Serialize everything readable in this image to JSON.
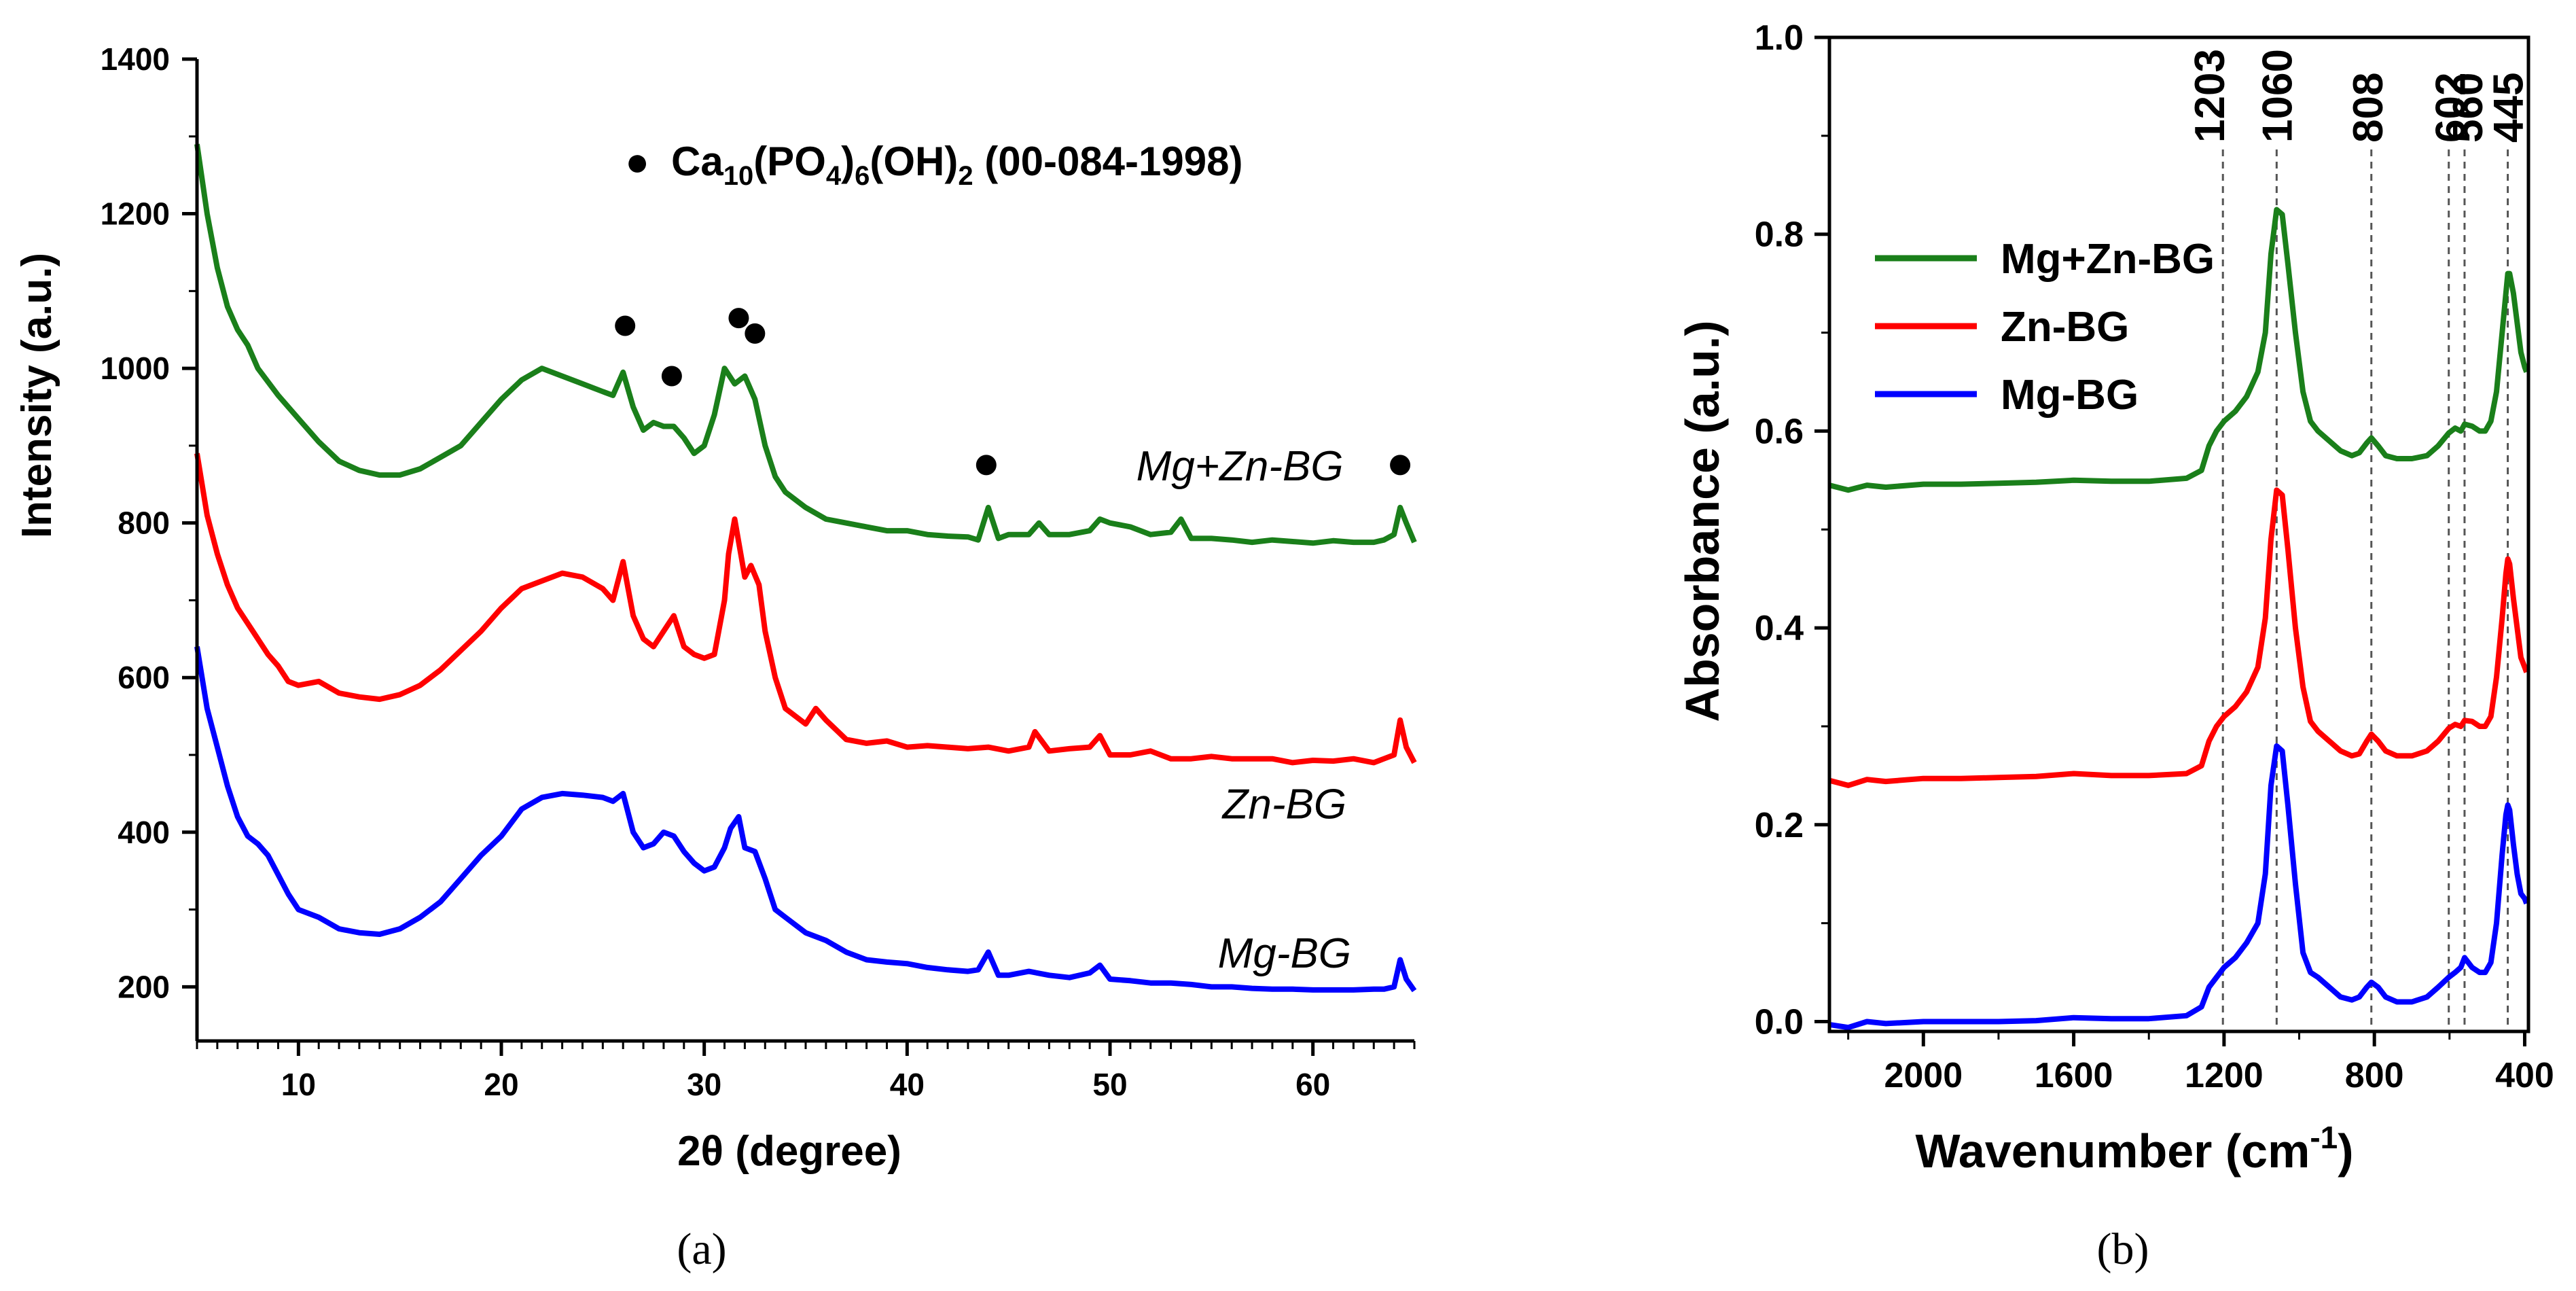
{
  "chart_data": [
    {
      "type": "line",
      "panel_label": "(a)",
      "xlabel": "2θ (degree)",
      "ylabel": "Intensity (a.u.)",
      "xlim": [
        5,
        65
      ],
      "ylim": [
        130,
        1400
      ],
      "x_ticks": [
        10,
        20,
        30,
        40,
        50,
        60
      ],
      "y_ticks": [
        200,
        400,
        600,
        800,
        1000,
        1200,
        1400
      ],
      "grid": false,
      "legend_title": "Ca10(PO4)6(OH)2 (00-084-1998)",
      "legend_parts": {
        "marker": "●",
        "ca": "Ca",
        "s10": "10",
        "po": "(PO",
        "s4": "4",
        "c": ")",
        "s6": "6",
        "oh": "(OH)",
        "s2": "2",
        "code": " (00-084-1998)"
      },
      "peak_markers": [
        {
          "x": 26.1,
          "y": 1055
        },
        {
          "x": 28.4,
          "y": 990
        },
        {
          "x": 31.7,
          "y": 1065
        },
        {
          "x": 32.5,
          "y": 1045
        },
        {
          "x": 43.9,
          "y": 875
        },
        {
          "x": 64.3,
          "y": 875
        }
      ],
      "series": [
        {
          "name": "Mg+Zn-BG",
          "color": "#1a7f1a",
          "label_x": 56.4,
          "label_y": 855,
          "x": [
            5,
            5.5,
            6,
            6.5,
            7,
            7.5,
            8,
            9,
            10,
            11,
            12,
            13,
            14,
            15,
            16,
            17,
            18,
            19,
            20,
            21,
            22,
            23,
            24,
            25,
            25.5,
            26,
            26.5,
            27,
            27.5,
            28,
            28.5,
            29,
            29.5,
            30,
            30.5,
            31,
            31.5,
            32,
            32.5,
            33,
            33.5,
            34,
            35,
            36,
            37,
            38,
            39,
            40,
            41,
            42,
            43,
            43.5,
            44,
            44.5,
            45,
            46,
            46.5,
            47,
            48,
            49,
            49.5,
            50,
            51,
            52,
            53,
            53.5,
            54,
            55,
            56,
            57,
            58,
            59,
            60,
            61,
            62,
            63,
            63.5,
            64,
            64.3,
            64.6,
            65
          ],
          "y": [
            1290,
            1200,
            1130,
            1080,
            1050,
            1030,
            1000,
            965,
            935,
            905,
            880,
            868,
            862,
            862,
            870,
            885,
            900,
            930,
            960,
            985,
            1000,
            990,
            980,
            970,
            965,
            995,
            950,
            920,
            930,
            925,
            925,
            910,
            890,
            900,
            940,
            1000,
            980,
            990,
            960,
            900,
            860,
            840,
            820,
            805,
            800,
            795,
            790,
            790,
            785,
            783,
            782,
            778,
            820,
            780,
            785,
            785,
            800,
            785,
            785,
            790,
            805,
            800,
            795,
            785,
            788,
            805,
            780,
            780,
            778,
            775,
            778,
            776,
            774,
            777,
            775,
            775,
            778,
            785,
            820,
            800,
            775
          ]
        },
        {
          "name": "Zn-BG",
          "color": "#ff0000",
          "label_x": 58.6,
          "label_y": 418,
          "x": [
            5,
            5.5,
            6,
            6.5,
            7,
            7.5,
            8,
            8.5,
            9,
            9.5,
            10,
            11,
            12,
            13,
            14,
            15,
            16,
            17,
            18,
            19,
            20,
            21,
            22,
            23,
            24,
            25,
            25.5,
            26,
            26.5,
            27,
            27.5,
            28,
            28.5,
            29,
            29.5,
            30,
            30.5,
            31,
            31.2,
            31.5,
            32,
            32.3,
            32.7,
            33,
            33.5,
            34,
            35,
            35.5,
            36,
            37,
            38,
            39,
            40,
            41,
            42,
            43,
            44,
            45,
            46,
            46.3,
            47,
            48,
            49,
            49.5,
            50,
            51,
            52,
            53,
            54,
            55,
            56,
            57,
            58,
            59,
            60,
            61,
            62,
            63,
            63.5,
            64,
            64.3,
            64.6,
            65
          ],
          "y": [
            890,
            810,
            760,
            720,
            690,
            670,
            650,
            630,
            615,
            595,
            590,
            595,
            580,
            575,
            572,
            578,
            590,
            610,
            635,
            660,
            690,
            715,
            725,
            735,
            730,
            715,
            700,
            750,
            680,
            650,
            640,
            660,
            680,
            640,
            630,
            625,
            630,
            700,
            760,
            805,
            730,
            745,
            720,
            660,
            600,
            560,
            540,
            560,
            545,
            520,
            515,
            518,
            510,
            512,
            510,
            508,
            510,
            505,
            510,
            530,
            505,
            508,
            510,
            525,
            500,
            500,
            505,
            495,
            495,
            498,
            495,
            495,
            495,
            490,
            493,
            492,
            495,
            490,
            495,
            500,
            545,
            510,
            490
          ]
        },
        {
          "name": "Mg-BG",
          "color": "#0000ff",
          "label_x": 58.6,
          "label_y": 225,
          "x": [
            5,
            5.5,
            6,
            6.5,
            7,
            7.5,
            8,
            8.5,
            9,
            9.5,
            10,
            11,
            12,
            13,
            14,
            15,
            16,
            17,
            18,
            19,
            20,
            21,
            22,
            23,
            24,
            25,
            25.5,
            26,
            26.5,
            27,
            27.5,
            28,
            28.5,
            29,
            29.5,
            30,
            30.5,
            31,
            31.3,
            31.7,
            32,
            32.5,
            33,
            33.5,
            34,
            35,
            36,
            37,
            38,
            39,
            40,
            41,
            42,
            43,
            43.5,
            44,
            44.5,
            45,
            46,
            47,
            48,
            49,
            49.5,
            50,
            51,
            52,
            53,
            54,
            55,
            56,
            57,
            58,
            59,
            60,
            61,
            62,
            63,
            63.5,
            64,
            64.3,
            64.6,
            65
          ],
          "y": [
            640,
            560,
            510,
            460,
            420,
            395,
            385,
            370,
            345,
            320,
            300,
            290,
            275,
            270,
            268,
            275,
            290,
            310,
            340,
            370,
            395,
            430,
            445,
            450,
            448,
            445,
            440,
            450,
            400,
            380,
            385,
            400,
            395,
            375,
            360,
            350,
            355,
            380,
            405,
            420,
            380,
            375,
            340,
            300,
            290,
            270,
            260,
            245,
            235,
            232,
            230,
            225,
            222,
            220,
            222,
            245,
            215,
            215,
            220,
            215,
            212,
            218,
            228,
            210,
            208,
            205,
            205,
            203,
            200,
            200,
            198,
            197,
            197,
            196,
            196,
            196,
            197,
            197,
            200,
            235,
            210,
            195
          ]
        }
      ]
    },
    {
      "type": "line",
      "panel_label": "(b)",
      "xlabel_main": "Wavenumber (cm",
      "xlabel_sup": "-1",
      "xlabel_end": ")",
      "ylabel": "Absorbance (a.u.)",
      "xlim": [
        2250,
        390
      ],
      "ylim": [
        -0.01,
        1.0
      ],
      "x_ticks": [
        2000,
        1600,
        1200,
        800,
        400
      ],
      "y_ticks": [
        0.0,
        0.2,
        0.4,
        0.6,
        0.8,
        1.0
      ],
      "y_tick_labels": [
        "0.0",
        "0.2",
        "0.4",
        "0.6",
        "0.8",
        "1.0"
      ],
      "x_tick_labels": [
        "2000",
        "1600",
        "1200",
        "800",
        "400"
      ],
      "grid": false,
      "legend_position": "upper-left",
      "reference_lines": [
        {
          "x": 1203,
          "label": "1203"
        },
        {
          "x": 1060,
          "label": "1060"
        },
        {
          "x": 808,
          "label": "808"
        },
        {
          "x": 602,
          "label": "602"
        },
        {
          "x": 560,
          "label": "560"
        },
        {
          "x": 445,
          "label": "445"
        }
      ],
      "series": [
        {
          "name": "Mg+Zn-BG",
          "color": "#1a7f1a",
          "x": [
            2250,
            2200,
            2150,
            2100,
            2000,
            1900,
            1800,
            1700,
            1600,
            1500,
            1400,
            1300,
            1260,
            1240,
            1220,
            1200,
            1170,
            1140,
            1110,
            1090,
            1075,
            1060,
            1045,
            1030,
            1010,
            990,
            970,
            950,
            920,
            890,
            860,
            840,
            820,
            808,
            790,
            770,
            740,
            700,
            660,
            630,
            602,
            585,
            570,
            560,
            540,
            520,
            505,
            490,
            475,
            460,
            450,
            445,
            440,
            430,
            420,
            410,
            400,
            395
          ],
          "y": [
            0.545,
            0.54,
            0.545,
            0.543,
            0.546,
            0.546,
            0.547,
            0.548,
            0.55,
            0.549,
            0.549,
            0.552,
            0.56,
            0.585,
            0.6,
            0.61,
            0.62,
            0.635,
            0.66,
            0.7,
            0.78,
            0.825,
            0.82,
            0.77,
            0.7,
            0.64,
            0.61,
            0.6,
            0.59,
            0.58,
            0.575,
            0.578,
            0.588,
            0.593,
            0.585,
            0.575,
            0.572,
            0.572,
            0.575,
            0.585,
            0.598,
            0.603,
            0.6,
            0.607,
            0.605,
            0.6,
            0.6,
            0.61,
            0.64,
            0.7,
            0.74,
            0.76,
            0.76,
            0.74,
            0.71,
            0.68,
            0.665,
            0.66
          ]
        },
        {
          "name": "Zn-BG",
          "color": "#ff0000",
          "x": [
            2250,
            2200,
            2150,
            2100,
            2000,
            1900,
            1800,
            1700,
            1600,
            1500,
            1400,
            1300,
            1260,
            1240,
            1220,
            1200,
            1170,
            1140,
            1110,
            1090,
            1075,
            1060,
            1045,
            1030,
            1010,
            990,
            970,
            950,
            920,
            890,
            860,
            840,
            820,
            808,
            790,
            770,
            740,
            700,
            660,
            630,
            602,
            585,
            570,
            560,
            540,
            520,
            505,
            490,
            475,
            460,
            450,
            445,
            440,
            430,
            420,
            410,
            400,
            395
          ],
          "y": [
            0.245,
            0.24,
            0.246,
            0.244,
            0.247,
            0.247,
            0.248,
            0.249,
            0.252,
            0.25,
            0.25,
            0.252,
            0.26,
            0.285,
            0.3,
            0.31,
            0.32,
            0.335,
            0.36,
            0.41,
            0.49,
            0.54,
            0.535,
            0.48,
            0.4,
            0.34,
            0.305,
            0.295,
            0.285,
            0.275,
            0.27,
            0.272,
            0.285,
            0.292,
            0.285,
            0.275,
            0.27,
            0.27,
            0.275,
            0.285,
            0.298,
            0.302,
            0.3,
            0.306,
            0.305,
            0.3,
            0.3,
            0.31,
            0.35,
            0.41,
            0.455,
            0.47,
            0.465,
            0.43,
            0.4,
            0.37,
            0.36,
            0.355
          ]
        },
        {
          "name": "Mg-BG",
          "color": "#0000ff",
          "x": [
            2250,
            2200,
            2150,
            2100,
            2000,
            1900,
            1800,
            1700,
            1600,
            1500,
            1400,
            1300,
            1260,
            1240,
            1220,
            1200,
            1170,
            1140,
            1110,
            1090,
            1075,
            1060,
            1045,
            1030,
            1010,
            990,
            970,
            950,
            920,
            890,
            860,
            840,
            820,
            808,
            790,
            770,
            740,
            700,
            660,
            630,
            602,
            585,
            570,
            560,
            540,
            520,
            505,
            490,
            475,
            460,
            450,
            445,
            440,
            430,
            420,
            410,
            400,
            395
          ],
          "y": [
            -0.003,
            -0.006,
            0.0,
            -0.002,
            0.0,
            0.0,
            0.0,
            0.001,
            0.004,
            0.003,
            0.003,
            0.006,
            0.015,
            0.035,
            0.045,
            0.055,
            0.065,
            0.08,
            0.1,
            0.15,
            0.24,
            0.28,
            0.275,
            0.22,
            0.14,
            0.07,
            0.05,
            0.045,
            0.035,
            0.025,
            0.022,
            0.025,
            0.035,
            0.04,
            0.035,
            0.025,
            0.02,
            0.02,
            0.025,
            0.035,
            0.045,
            0.05,
            0.055,
            0.065,
            0.055,
            0.05,
            0.05,
            0.06,
            0.1,
            0.17,
            0.21,
            0.22,
            0.215,
            0.18,
            0.15,
            0.13,
            0.125,
            0.12
          ]
        }
      ]
    }
  ]
}
